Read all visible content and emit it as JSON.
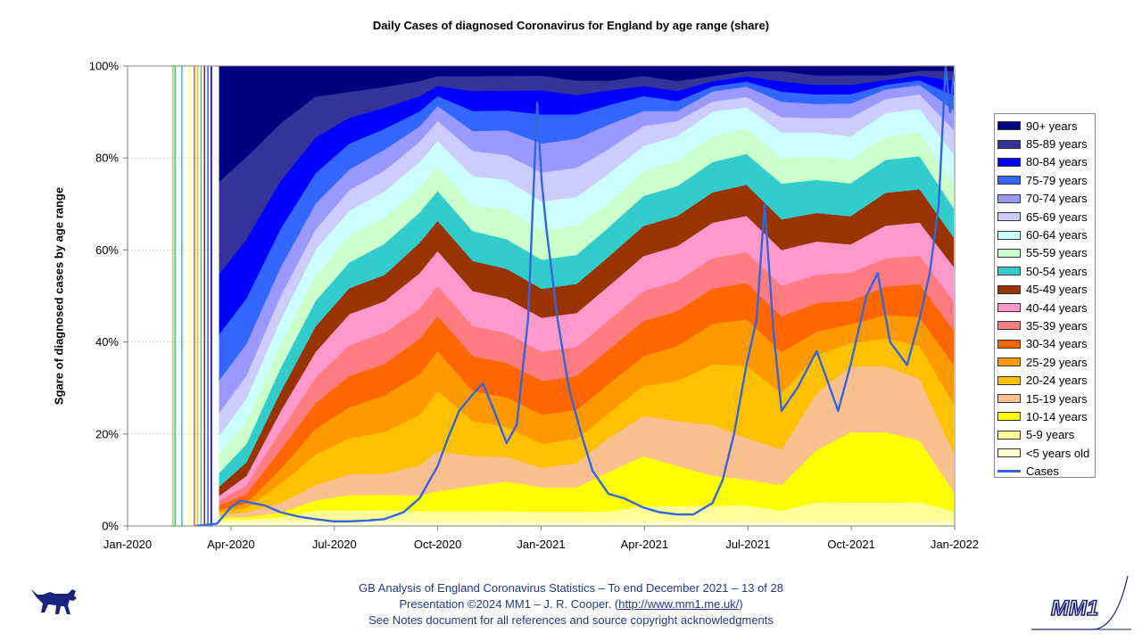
{
  "footer": {
    "line1": "GB Analysis of England Coronavirus Statistics – To end December 2021 – 13 of 28",
    "line2_prefix": "Presentation ©2024 MM1 – J. R. Cooper. (",
    "line2_link": "http://www.mm1.me.uk/",
    "line2_suffix": ")",
    "line3": "See Notes document for all references and source copyright acknowledgments"
  },
  "logos": {
    "left_icon": "dog-icon",
    "right_logo_text": "MM1"
  },
  "chart_data": {
    "type": "area",
    "stacked": true,
    "percent_stacked": true,
    "title": "Daily Cases of diagnosed Coronavirus for England by age range (share)",
    "ylabel": "Sgare of diagnosed cases by age range",
    "xlabel": "",
    "ylim": [
      0,
      100
    ],
    "y_ticks": [
      "0%",
      "20%",
      "40%",
      "60%",
      "80%",
      "100%"
    ],
    "x_ticks": [
      "Jan-2020",
      "Apr-2020",
      "Jul-2020",
      "Oct-2020",
      "Jan-2021",
      "Apr-2021",
      "Jul-2021",
      "Oct-2021",
      "Jan-2022"
    ],
    "legend_position": "right",
    "x": [
      "2020-03-22",
      "2020-04-15",
      "2020-05-15",
      "2020-06-15",
      "2020-07-15",
      "2020-08-15",
      "2020-09-15",
      "2020-10-01",
      "2020-11-01",
      "2020-12-01",
      "2021-01-01",
      "2021-02-01",
      "2021-03-01",
      "2021-04-01",
      "2021-05-01",
      "2021-06-01",
      "2021-07-01",
      "2021-08-01",
      "2021-09-01",
      "2021-10-01",
      "2021-11-01",
      "2021-12-01",
      "2021-12-31"
    ],
    "series": [
      {
        "name": "<5 years old",
        "color": "#ffffcc",
        "values": [
          1,
          1,
          1,
          1,
          1,
          1,
          1,
          1,
          1,
          1,
          1,
          1,
          1,
          1,
          1,
          1,
          1,
          1,
          1,
          1,
          1,
          1,
          1
        ]
      },
      {
        "name": "5-9 years",
        "color": "#ffff99",
        "values": [
          0.5,
          0.5,
          0.8,
          2,
          2,
          2,
          2,
          2,
          2,
          2,
          2,
          2,
          2,
          3,
          3,
          3,
          3,
          2,
          4,
          4,
          4,
          4,
          2
        ]
      },
      {
        "name": "10-14 years",
        "color": "#ffff00",
        "values": [
          0.5,
          0.5,
          1,
          2,
          3,
          3,
          3,
          4,
          5,
          6,
          5,
          5,
          8,
          10,
          8,
          6,
          5,
          5,
          11,
          15,
          15,
          13,
          4
        ]
      },
      {
        "name": "15-19 years",
        "color": "#fac090",
        "values": [
          0.5,
          1,
          2,
          3,
          4,
          4,
          6,
          8,
          6,
          5,
          4,
          5,
          7,
          8,
          9,
          10,
          8,
          7,
          12,
          14,
          14,
          13,
          8
        ]
      },
      {
        "name": "20-24 years",
        "color": "#ffc000",
        "values": [
          0.5,
          1,
          4,
          6,
          7,
          8,
          10,
          12,
          7,
          6,
          5,
          5,
          5,
          6,
          8,
          12,
          14,
          11,
          8,
          5,
          6,
          7,
          10
        ]
      },
      {
        "name": "25-29 years",
        "color": "#ff9900",
        "values": [
          0.5,
          1,
          3,
          5,
          6,
          7,
          8,
          8,
          6,
          6,
          6,
          6,
          6,
          6,
          7,
          8,
          9,
          8,
          5,
          4,
          5,
          6,
          8
        ]
      },
      {
        "name": "30-34 years",
        "color": "#ff6600",
        "values": [
          1,
          2,
          4,
          5,
          6,
          6,
          7,
          7,
          7,
          7,
          7,
          7,
          7,
          7,
          7,
          7,
          7,
          7,
          6,
          5,
          6,
          7,
          7
        ]
      },
      {
        "name": "35-39 years",
        "color": "#ff7c80",
        "values": [
          1,
          2,
          4,
          5,
          6,
          6,
          6,
          6,
          6,
          6,
          6,
          6,
          6,
          6,
          6,
          6,
          6,
          6,
          6,
          6,
          6,
          6,
          6
        ]
      },
      {
        "name": "40-44 years",
        "color": "#ff99cc",
        "values": [
          1,
          2,
          4,
          5,
          6,
          6,
          7,
          7,
          7,
          7,
          7,
          7,
          7,
          7,
          7,
          7,
          7,
          7,
          7,
          6,
          7,
          7,
          7
        ]
      },
      {
        "name": "45-49 years",
        "color": "#993300",
        "values": [
          2,
          3,
          4,
          5,
          5,
          5,
          6,
          6,
          6,
          6,
          6,
          6,
          6,
          6,
          6,
          6,
          6,
          6,
          6,
          6,
          7,
          7,
          6
        ]
      },
      {
        "name": "50-54 years",
        "color": "#33cccc",
        "values": [
          3,
          4,
          5,
          5,
          5,
          6,
          6,
          6,
          6,
          6,
          6,
          6,
          6,
          6,
          6,
          6,
          6,
          7,
          7,
          7,
          7,
          7,
          6
        ]
      },
      {
        "name": "55-59 years",
        "color": "#ccffcc",
        "values": [
          4,
          5,
          5,
          5,
          5,
          5,
          5,
          5,
          5,
          6,
          6,
          6,
          5,
          5,
          5,
          5,
          5,
          5,
          5,
          5,
          5,
          5,
          5
        ]
      },
      {
        "name": "60-64 years",
        "color": "#ccffff",
        "values": [
          4,
          5,
          5,
          5,
          5,
          5,
          5,
          5,
          6,
          6,
          6,
          6,
          6,
          5,
          5,
          5,
          4,
          5,
          5,
          5,
          5,
          5,
          6
        ]
      },
      {
        "name": "65-69 years",
        "color": "#ccccff",
        "values": [
          5,
          5,
          5,
          4,
          4,
          4,
          4,
          4,
          5,
          5,
          6,
          6,
          5,
          4,
          3,
          2,
          2,
          3,
          3,
          4,
          3,
          3,
          5
        ]
      },
      {
        "name": "70-74 years",
        "color": "#9999ff",
        "values": [
          7,
          7,
          6,
          5,
          4,
          4,
          3,
          3,
          4,
          5,
          6,
          6,
          5,
          3,
          2,
          2,
          2,
          3,
          3,
          3,
          2,
          2,
          4
        ]
      },
      {
        "name": "75-79 years",
        "color": "#3366ff",
        "values": [
          10,
          10,
          8,
          6,
          5,
          4,
          3,
          2,
          4,
          4,
          6,
          5,
          4,
          3,
          2,
          1,
          1,
          2,
          2,
          2,
          1,
          1,
          3
        ]
      },
      {
        "name": "80-84 years",
        "color": "#0000ff",
        "values": [
          13,
          13,
          10,
          7,
          5,
          4,
          3,
          2,
          4,
          4,
          5,
          4,
          3,
          2,
          2,
          1,
          1,
          2,
          2,
          2,
          1,
          1,
          3
        ]
      },
      {
        "name": "85-89 years",
        "color": "#333399",
        "values": [
          20,
          18,
          12,
          8,
          5,
          4,
          3,
          2,
          3,
          3,
          3,
          3,
          2,
          2,
          2,
          1,
          1,
          2,
          2,
          2,
          1,
          1,
          2
        ]
      },
      {
        "name": "90+ years",
        "color": "#000080",
        "values": [
          25,
          20,
          12,
          6,
          5,
          4,
          3,
          2,
          2,
          2,
          2,
          3,
          3,
          2,
          3,
          2,
          1,
          1,
          2,
          2,
          2,
          1,
          1
        ]
      }
    ],
    "cases_line": {
      "name": "Cases",
      "color": "#3366dd",
      "unit": "share of peak on the 0-100% axis",
      "points": [
        [
          "2020-03-01",
          0
        ],
        [
          "2020-03-20",
          0.5
        ],
        [
          "2020-04-01",
          4
        ],
        [
          "2020-04-10",
          5.5
        ],
        [
          "2020-04-20",
          5
        ],
        [
          "2020-05-01",
          4.5
        ],
        [
          "2020-05-15",
          3
        ],
        [
          "2020-06-01",
          2
        ],
        [
          "2020-06-15",
          1.5
        ],
        [
          "2020-07-01",
          1
        ],
        [
          "2020-07-15",
          1
        ],
        [
          "2020-08-01",
          1.2
        ],
        [
          "2020-08-15",
          1.5
        ],
        [
          "2020-09-01",
          3
        ],
        [
          "2020-09-15",
          6
        ],
        [
          "2020-10-01",
          13
        ],
        [
          "2020-10-10",
          19
        ],
        [
          "2020-10-20",
          25
        ],
        [
          "2020-10-30",
          28
        ],
        [
          "2020-11-10",
          31
        ],
        [
          "2020-11-20",
          25
        ],
        [
          "2020-12-01",
          18
        ],
        [
          "2020-12-10",
          22
        ],
        [
          "2020-12-20",
          45
        ],
        [
          "2020-12-28",
          92
        ],
        [
          "2021-01-01",
          75
        ],
        [
          "2021-01-05",
          65
        ],
        [
          "2021-01-15",
          45
        ],
        [
          "2021-01-25",
          30
        ],
        [
          "2021-02-05",
          20
        ],
        [
          "2021-02-15",
          12
        ],
        [
          "2021-03-01",
          7
        ],
        [
          "2021-03-15",
          6
        ],
        [
          "2021-04-01",
          4
        ],
        [
          "2021-04-15",
          3
        ],
        [
          "2021-05-01",
          2.5
        ],
        [
          "2021-05-15",
          2.5
        ],
        [
          "2021-06-01",
          5
        ],
        [
          "2021-06-10",
          10
        ],
        [
          "2021-06-20",
          20
        ],
        [
          "2021-07-01",
          35
        ],
        [
          "2021-07-10",
          45
        ],
        [
          "2021-07-17",
          70
        ],
        [
          "2021-07-25",
          42
        ],
        [
          "2021-08-01",
          25
        ],
        [
          "2021-08-15",
          30
        ],
        [
          "2021-09-01",
          38
        ],
        [
          "2021-09-10",
          32
        ],
        [
          "2021-09-20",
          25
        ],
        [
          "2021-10-01",
          35
        ],
        [
          "2021-10-15",
          50
        ],
        [
          "2021-10-25",
          55
        ],
        [
          "2021-11-05",
          40
        ],
        [
          "2021-11-20",
          35
        ],
        [
          "2021-12-01",
          45
        ],
        [
          "2021-12-10",
          55
        ],
        [
          "2021-12-18",
          70
        ],
        [
          "2021-12-24",
          100
        ],
        [
          "2021-12-28",
          90
        ],
        [
          "2021-12-31",
          98
        ]
      ]
    }
  }
}
